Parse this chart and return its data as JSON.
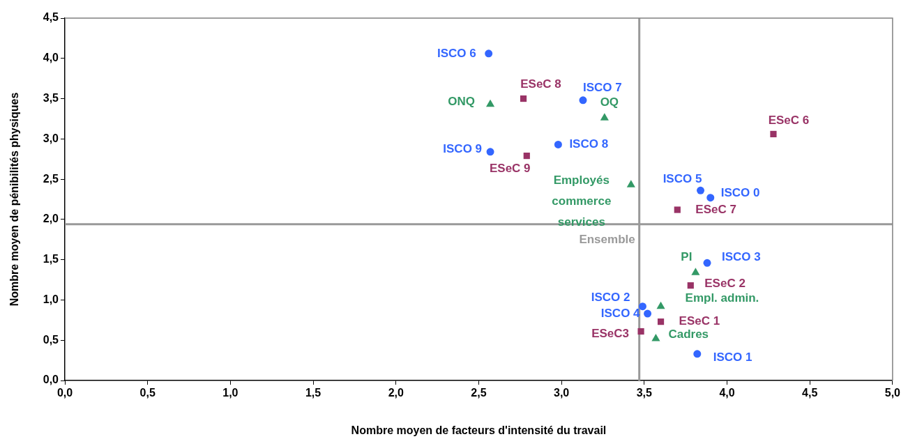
{
  "chart_data": {
    "type": "scatter",
    "xlabel": "Nombre moyen de facteurs d'intensité du travail",
    "ylabel": "Nombre moyen de pénibilités physiques",
    "xlim": [
      0,
      5
    ],
    "ylim": [
      0,
      4.5
    ],
    "xticks": [
      {
        "value": 0,
        "label": "0,0"
      },
      {
        "value": 0.5,
        "label": "0,5"
      },
      {
        "value": 1,
        "label": "1,0"
      },
      {
        "value": 1.5,
        "label": "1,5"
      },
      {
        "value": 2,
        "label": "2,0"
      },
      {
        "value": 2.5,
        "label": "2,5"
      },
      {
        "value": 3,
        "label": "3,0"
      },
      {
        "value": 3.5,
        "label": "3,5"
      },
      {
        "value": 4,
        "label": "4,0"
      },
      {
        "value": 4.5,
        "label": "4,5"
      },
      {
        "value": 5,
        "label": "5,0"
      }
    ],
    "yticks": [
      {
        "value": 0,
        "label": "0,0"
      },
      {
        "value": 0.5,
        "label": "0,5"
      },
      {
        "value": 1,
        "label": "1,0"
      },
      {
        "value": 1.5,
        "label": "1,5"
      },
      {
        "value": 2,
        "label": "2,0"
      },
      {
        "value": 2.5,
        "label": "2,5"
      },
      {
        "value": 3,
        "label": "3,0"
      },
      {
        "value": 3.5,
        "label": "3,5"
      },
      {
        "value": 4,
        "label": "4,0"
      },
      {
        "value": 4.5,
        "label": "4,5"
      }
    ],
    "grid": false,
    "legend": false,
    "series": [
      {
        "color": "#3366ff",
        "marker": "circle",
        "x": [
          2.56,
          3.13,
          2.57,
          2.98,
          3.84,
          3.9,
          3.88,
          3.49,
          3.52,
          3.82
        ],
        "values": [
          4.06,
          3.48,
          2.84,
          2.93,
          2.36,
          2.27,
          1.46,
          0.92,
          0.83,
          0.33
        ]
      },
      {
        "color": "#993366",
        "marker": "square",
        "x": [
          2.77,
          2.79,
          4.28,
          3.7,
          3.78,
          3.6,
          3.48
        ],
        "values": [
          3.5,
          2.79,
          3.06,
          2.12,
          1.18,
          0.73,
          0.61
        ]
      },
      {
        "color": "#339966",
        "marker": "triangle",
        "x": [
          2.57,
          3.26,
          3.42,
          3.81,
          3.6,
          3.57
        ],
        "values": [
          3.43,
          3.26,
          2.43,
          1.34,
          0.92,
          0.52
        ]
      }
    ],
    "ref_lines": [
      {
        "axis": "x",
        "value": 3.47,
        "color": "#999999"
      },
      {
        "axis": "y",
        "value": 1.94,
        "color": "#999999",
        "label": "Ensemble"
      }
    ],
    "annotations": [
      {
        "text": "ISCO 6",
        "x": 2.56,
        "y": 4.06
      },
      {
        "text": "ISCO 7",
        "x": 3.13,
        "y": 3.48
      },
      {
        "text": "ISCO 9",
        "x": 2.57,
        "y": 2.84
      },
      {
        "text": "ISCO 8",
        "x": 2.98,
        "y": 2.93
      },
      {
        "text": "ISCO 5",
        "x": 3.84,
        "y": 2.36
      },
      {
        "text": "ISCO 0",
        "x": 3.9,
        "y": 2.27
      },
      {
        "text": "ISCO 3",
        "x": 3.88,
        "y": 1.46
      },
      {
        "text": "ISCO 2",
        "x": 3.49,
        "y": 0.92
      },
      {
        "text": "ISCO 4",
        "x": 3.52,
        "y": 0.83
      },
      {
        "text": "ISCO 1",
        "x": 3.82,
        "y": 0.33
      },
      {
        "text": "ESeC 8",
        "x": 2.77,
        "y": 3.5
      },
      {
        "text": "ESeC 9",
        "x": 2.79,
        "y": 2.79
      },
      {
        "text": "ESeC 6",
        "x": 4.28,
        "y": 3.06
      },
      {
        "text": "ESeC 7",
        "x": 3.7,
        "y": 2.12
      },
      {
        "text": "ESeC 2",
        "x": 3.78,
        "y": 1.18
      },
      {
        "text": "ESeC 1",
        "x": 3.6,
        "y": 0.73
      },
      {
        "text": "ESeC3",
        "x": 3.48,
        "y": 0.61
      },
      {
        "text": "ONQ",
        "x": 2.57,
        "y": 3.43
      },
      {
        "text": "OQ",
        "x": 3.26,
        "y": 3.26
      },
      {
        "text": "Employés commerce services",
        "x": 3.42,
        "y": 2.43
      },
      {
        "text": "PI",
        "x": 3.81,
        "y": 1.34
      },
      {
        "text": "Empl. admin.",
        "x": 3.6,
        "y": 0.92
      },
      {
        "text": "Cadres",
        "x": 3.57,
        "y": 0.52
      }
    ]
  }
}
